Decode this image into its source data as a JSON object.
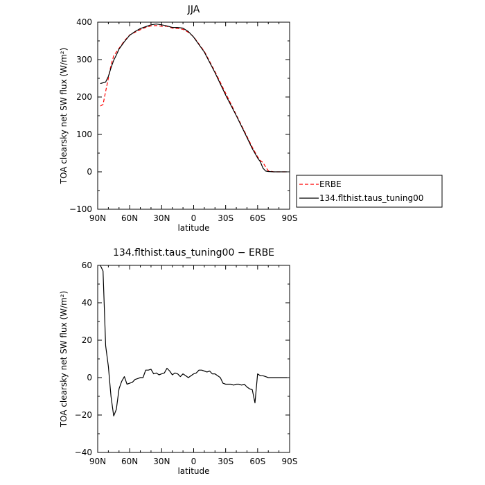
{
  "chart_data": [
    {
      "type": "line",
      "title": "JJA",
      "xlabel": "latitude",
      "ylabel": "TOA clearsky net SW flux (W/m²)",
      "xlim": [
        90,
        -90
      ],
      "ylim": [
        -100,
        400
      ],
      "x_tick_values": [
        90,
        60,
        30,
        0,
        -30,
        -60,
        -90
      ],
      "x_tick_labels": [
        "90N",
        "60N",
        "30N",
        "0",
        "30S",
        "60S",
        "90S"
      ],
      "y_tick_values": [
        -100,
        0,
        100,
        200,
        300,
        400
      ],
      "y_tick_labels": [
        "−100",
        "0",
        "100",
        "200",
        "300",
        "400"
      ],
      "grid": false,
      "legend_position": "right",
      "series": [
        {
          "name": "ERBE",
          "color": "#ff0000",
          "dash": "dashed",
          "x": [
            87.5,
            85,
            82.5,
            80,
            77.5,
            75,
            72.5,
            70,
            65,
            60,
            55,
            50,
            45,
            40,
            35,
            30,
            25,
            20,
            15,
            10,
            5,
            0,
            -10,
            -20,
            -30,
            -40,
            -50,
            -55,
            -60,
            -62.5,
            -65,
            -67.5,
            -70,
            -75,
            -80,
            -85,
            -87.5
          ],
          "y": [
            176,
            180,
            215,
            250,
            285,
            310,
            320,
            330,
            350,
            366,
            373,
            380,
            386,
            390,
            391,
            389,
            389,
            384,
            383,
            381,
            373,
            361,
            322,
            268,
            210,
            152,
            95,
            66,
            40,
            30,
            25,
            13,
            3,
            0,
            0,
            0,
            0
          ]
        },
        {
          "name": "134.flthist.taus_tuning00",
          "color": "#000000",
          "dash": "solid",
          "x": [
            87.5,
            85,
            82.5,
            80,
            77.5,
            75,
            72.5,
            70,
            65,
            60,
            55,
            50,
            45,
            40,
            35,
            30,
            25,
            20,
            15,
            10,
            5,
            0,
            -10,
            -20,
            -30,
            -40,
            -50,
            -55,
            -60,
            -62.5,
            -65,
            -67.5,
            -70,
            -75,
            -80,
            -85,
            -87.5
          ],
          "y": [
            236,
            238,
            240,
            255,
            278,
            298,
            312,
            328,
            348,
            365,
            375,
            383,
            388,
            393,
            395,
            393,
            390,
            386,
            386,
            384,
            375,
            360,
            320,
            265,
            205,
            150,
            92,
            62,
            37,
            27,
            10,
            2,
            1,
            0,
            0,
            0,
            0
          ]
        }
      ]
    },
    {
      "type": "line",
      "title": "134.flthist.taus_tuning00 − ERBE",
      "xlabel": "latitude",
      "ylabel": "TOA clearsky net SW flux (W/m²)",
      "xlim": [
        90,
        -90
      ],
      "ylim": [
        -40,
        60
      ],
      "x_tick_values": [
        90,
        60,
        30,
        0,
        -30,
        -60,
        -90
      ],
      "x_tick_labels": [
        "90N",
        "60N",
        "30N",
        "0",
        "30S",
        "60S",
        "90S"
      ],
      "y_tick_values": [
        -40,
        -20,
        0,
        20,
        40,
        60
      ],
      "y_tick_labels": [
        "−40",
        "−20",
        "0",
        "20",
        "40",
        "60"
      ],
      "grid": false,
      "series": [
        {
          "color": "#000000",
          "dash": "solid",
          "x": [
            87.5,
            85,
            82.5,
            80,
            77.5,
            75,
            72.5,
            70,
            67.5,
            65,
            62.5,
            60,
            57.5,
            55,
            52.5,
            50,
            47.5,
            45,
            42.5,
            40,
            37.5,
            35,
            32.5,
            30,
            27.5,
            25,
            22.5,
            20,
            17.5,
            15,
            12.5,
            10,
            7.5,
            5,
            2.5,
            0,
            -2.5,
            -5,
            -7.5,
            -10,
            -12.5,
            -15,
            -17.5,
            -20,
            -22.5,
            -25,
            -27.5,
            -30,
            -32.5,
            -35,
            -37.5,
            -40,
            -42.5,
            -45,
            -47.5,
            -50,
            -52.5,
            -55,
            -57.5,
            -60,
            -62.5,
            -65,
            -67.5,
            -70,
            -72.5,
            -75,
            -77.5,
            -80,
            -82.5,
            -85,
            -87.5
          ],
          "y": [
            60,
            57,
            17,
            6,
            -10,
            -20.5,
            -17,
            -6,
            -2,
            0.5,
            -3.5,
            -3,
            -2.5,
            -1,
            -0.5,
            0,
            0,
            4,
            4,
            4.5,
            2,
            2.5,
            1.5,
            2,
            2.5,
            5,
            3.5,
            1.5,
            2.5,
            2,
            0.5,
            2,
            1,
            0,
            1,
            2,
            2.5,
            4,
            4,
            3.5,
            3,
            3.5,
            2,
            2,
            1,
            0,
            -3,
            -3.5,
            -3.5,
            -3.5,
            -4,
            -3.5,
            -3.5,
            -4,
            -3.5,
            -5,
            -6,
            -6.5,
            -13.5,
            2,
            1,
            1,
            0.5,
            0,
            0,
            0,
            0,
            0,
            0,
            0,
            0
          ]
        }
      ]
    }
  ]
}
